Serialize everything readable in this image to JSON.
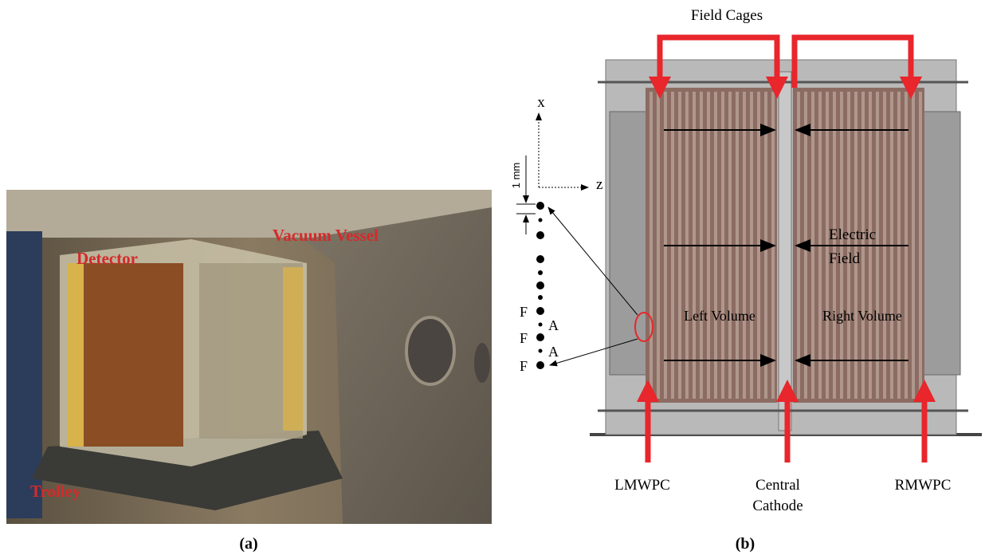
{
  "panel_a": {
    "caption": "(a)",
    "labels": [
      "Vacuum Vessel",
      "Detector",
      "Trolley"
    ]
  },
  "panel_b": {
    "caption": "(b)",
    "title": "Field Cages",
    "axes": [
      "x",
      "z"
    ],
    "scale": "1 mm",
    "wire_labels": [
      "F",
      "A",
      "F",
      "A",
      "F"
    ],
    "field_label": [
      "Electric",
      "Field"
    ],
    "volumes": [
      "Left Volume",
      "Right Volume"
    ],
    "bottom_labels": [
      "LMWPC",
      "Central",
      "Cathode",
      "RMWPC"
    ]
  }
}
